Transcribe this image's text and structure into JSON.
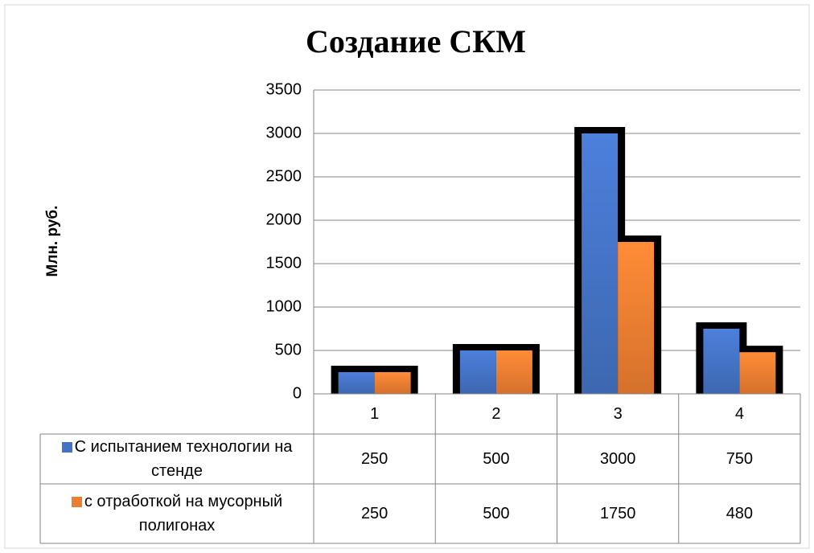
{
  "chart_data": {
    "type": "bar",
    "title": "Создание СКМ",
    "y_label": "Млн. руб.",
    "categories": [
      "1",
      "2",
      "3",
      "4"
    ],
    "series": [
      {
        "name": "С испытанием технологии на стенде",
        "color": "#4472c4",
        "values": [
          250,
          500,
          3000,
          750
        ]
      },
      {
        "name": "с отработкой на мусорный полигонах",
        "color": "#ed7d31",
        "values": [
          250,
          500,
          1750,
          480
        ]
      }
    ],
    "ylim": [
      0,
      3500
    ],
    "yticks": [
      0,
      500,
      1000,
      1500,
      2000,
      2500,
      3000,
      3500
    ],
    "grid": true,
    "data_table": true
  }
}
